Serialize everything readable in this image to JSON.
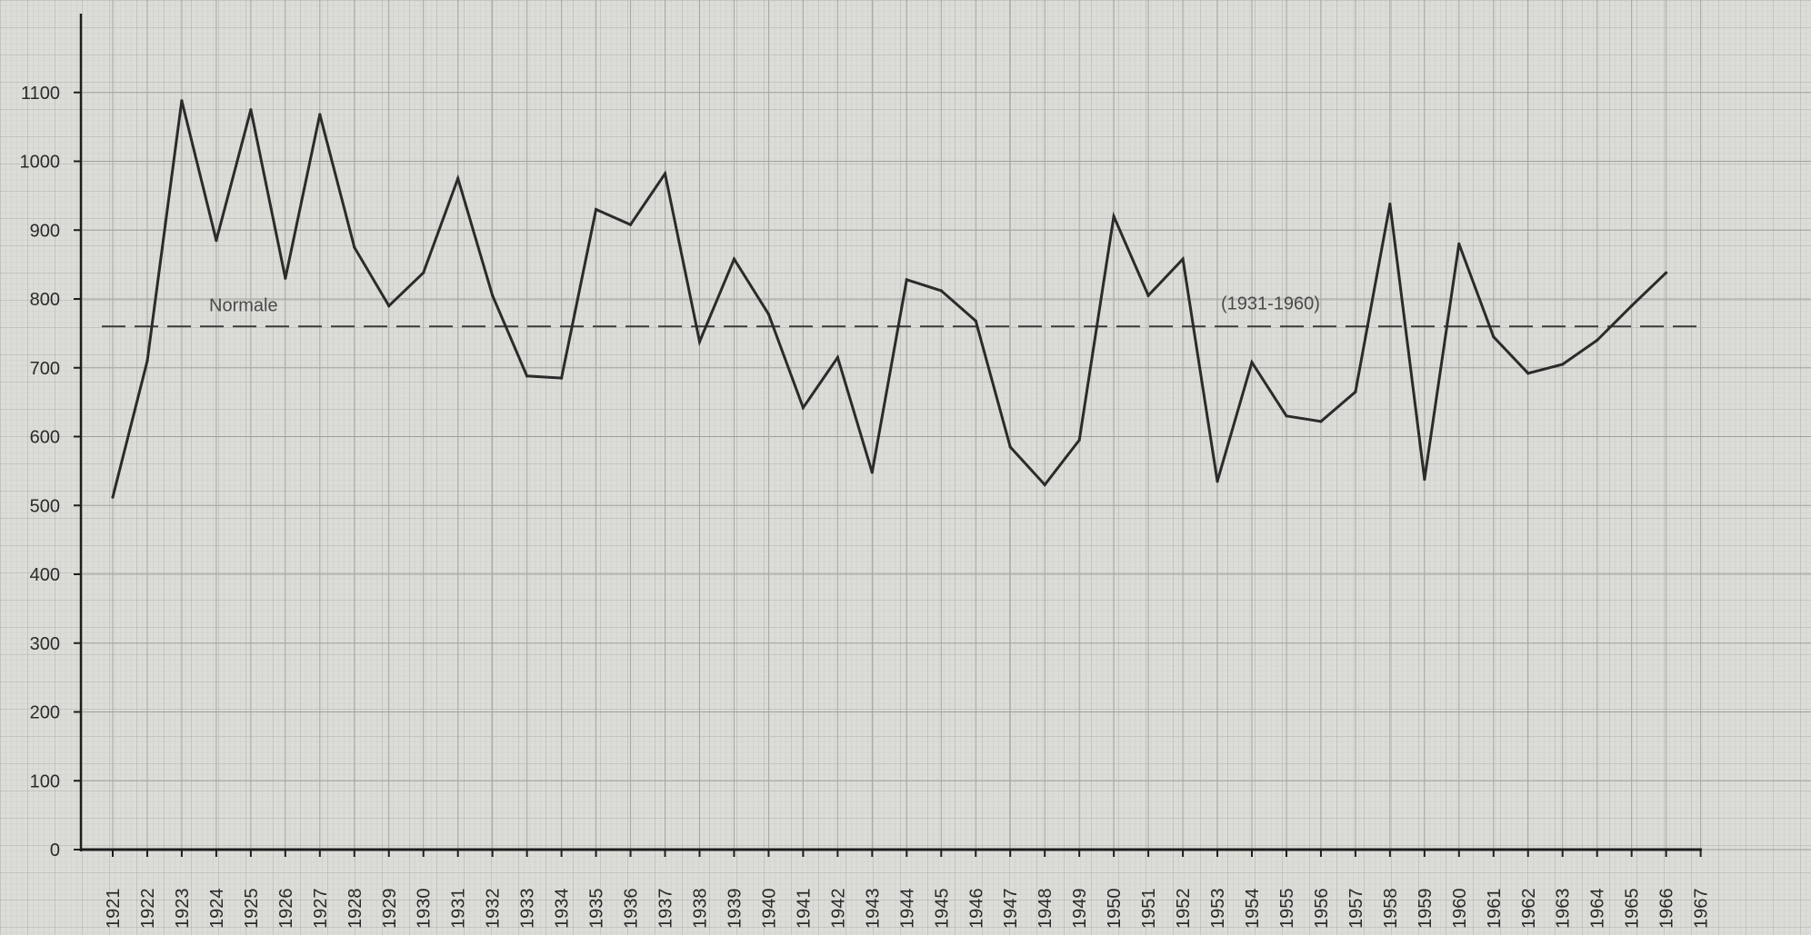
{
  "chart_data": {
    "type": "line",
    "title": "",
    "xlabel": "",
    "ylabel": "",
    "ylim": [
      0,
      1200
    ],
    "xlim": [
      1920,
      1968
    ],
    "grid": true,
    "y_ticks": [
      0,
      100,
      200,
      300,
      400,
      500,
      600,
      700,
      800,
      900,
      1000,
      1100
    ],
    "x_ticks": [
      1921,
      1922,
      1923,
      1924,
      1925,
      1926,
      1927,
      1928,
      1929,
      1930,
      1931,
      1932,
      1933,
      1934,
      1935,
      1936,
      1937,
      1938,
      1939,
      1940,
      1941,
      1942,
      1943,
      1944,
      1945,
      1946,
      1947,
      1948,
      1949,
      1950,
      1951,
      1952,
      1953,
      1954,
      1955,
      1956,
      1957,
      1958,
      1959,
      1960,
      1961,
      1962,
      1963,
      1964,
      1965,
      1966,
      1967
    ],
    "series": [
      {
        "x": [
          1921,
          1922,
          1923,
          1924,
          1925,
          1926,
          1927,
          1928,
          1929,
          1930,
          1931,
          1932,
          1933,
          1934,
          1935,
          1936,
          1937,
          1938,
          1939,
          1940,
          1941,
          1942,
          1943,
          1944,
          1945,
          1946,
          1947,
          1948,
          1949,
          1950,
          1951,
          1952,
          1953,
          1954,
          1955,
          1956,
          1957,
          1958,
          1959,
          1960,
          1961,
          1962,
          1963,
          1964,
          1965,
          1966
        ],
        "values": [
          512,
          710,
          1088,
          885,
          1075,
          830,
          1068,
          875,
          790,
          838,
          975,
          805,
          688,
          685,
          930,
          908,
          982,
          738,
          858,
          778,
          642,
          715,
          548,
          828,
          812,
          768,
          585,
          530,
          595,
          920,
          805,
          858,
          535,
          708,
          630,
          622,
          665,
          938,
          538,
          880,
          745,
          692,
          705,
          740,
          790,
          838
        ],
        "color": "#2b2b2b"
      }
    ],
    "reference_line": {
      "value": 760,
      "label_left": "Normale",
      "label_right": "(1931-1960)"
    }
  }
}
